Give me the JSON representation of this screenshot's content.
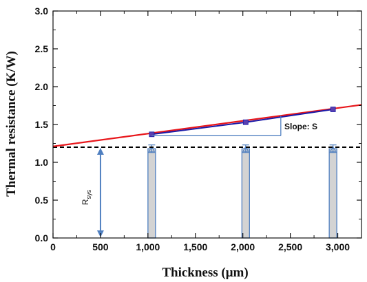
{
  "chart_data": {
    "type": "line",
    "xlabel": "Thickness (μm)",
    "ylabel": "Thermal resistance (K/W)",
    "xlim": [
      0,
      3250
    ],
    "ylim": [
      0.0,
      3.0
    ],
    "x_ticks": [
      0,
      500,
      1000,
      1500,
      2000,
      2500,
      3000
    ],
    "x_tick_labels": [
      "0",
      "500",
      "1,000",
      "1,500",
      "2,000",
      "2,500",
      "3,000"
    ],
    "y_ticks": [
      0.0,
      0.5,
      1.0,
      1.5,
      2.0,
      2.5,
      3.0
    ],
    "y_tick_labels": [
      "0.0",
      "0.5",
      "1.0",
      "1.5",
      "2.0",
      "2.5",
      "3.0"
    ],
    "grid": false,
    "series": [
      {
        "kind": "scatter-line",
        "color": "#1a1aa8",
        "x": [
          1040,
          2030,
          2950
        ],
        "y": [
          1.37,
          1.53,
          1.7
        ]
      },
      {
        "kind": "fit-line",
        "color": "#e8161b",
        "x": [
          0,
          3250
        ],
        "y": [
          1.21,
          1.76
        ]
      },
      {
        "kind": "reference-line",
        "style": "dashed",
        "color": "#000000",
        "x": [
          0,
          3250
        ],
        "y": [
          1.2,
          1.2
        ]
      }
    ],
    "bars": {
      "color": "#d3d3d3",
      "edge_color": "#4f7fc0",
      "x": [
        1040,
        2030,
        2950
      ],
      "y": [
        1.18,
        1.18,
        1.18
      ],
      "error": [
        0.05,
        0.05,
        0.05
      ]
    },
    "annotations": {
      "slope_label": "Slope: S",
      "rsys_main": "R",
      "rsys_sub": "sys",
      "rsys_x": 500,
      "rsys_y_range": [
        0.0,
        1.2
      ],
      "arrow_color": "#4f7fc0"
    }
  }
}
